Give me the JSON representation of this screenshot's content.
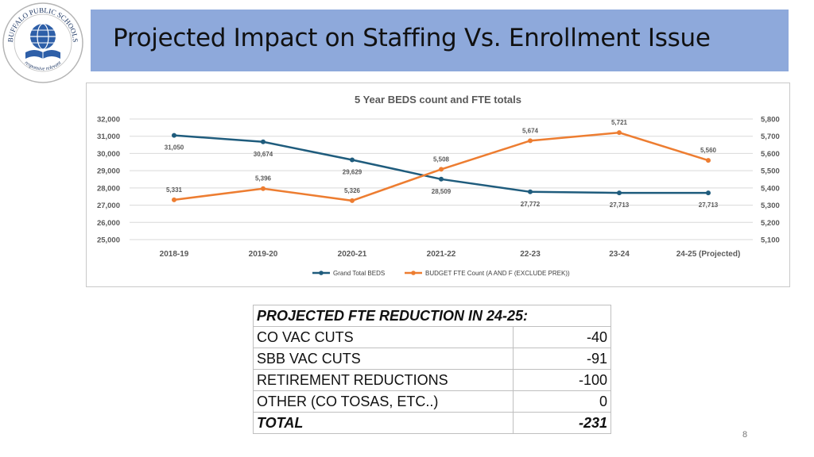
{
  "header": {
    "title": "Projected Impact on Staffing Vs. Enrollment Issue",
    "logo_text": "BUFFALO PUBLIC SCHOOLS",
    "logo_motto": "responsive relevant"
  },
  "chart_data": {
    "type": "line",
    "title": "5 Year BEDS count and FTE totals",
    "categories": [
      "2018-19",
      "2019-20",
      "2020-21",
      "2021-22",
      "22-23",
      "23-24",
      "24-25 (Projected)"
    ],
    "series": [
      {
        "name": "Grand Total BEDS",
        "axis": "left",
        "color": "#1f5c7d",
        "values": [
          31050,
          30674,
          29629,
          28509,
          27772,
          27713,
          27713
        ],
        "labels": [
          "31,050",
          "30,674",
          "29,629",
          "28,509",
          "27,772",
          "27,713",
          "27,713"
        ]
      },
      {
        "name": "BUDGET FTE Count (A AND F (EXCLUDE PREK))",
        "axis": "right",
        "color": "#ed7d31",
        "values": [
          5331,
          5396,
          5326,
          5508,
          5674,
          5721,
          5560
        ],
        "labels": [
          "5,331",
          "5,396",
          "5,326",
          "5,508",
          "5,674",
          "5,721",
          "5,560"
        ]
      }
    ],
    "ylim_left": [
      25000,
      32000
    ],
    "yticks_left": [
      "32,000",
      "31,000",
      "30,000",
      "29,000",
      "28,000",
      "27,000",
      "26,000",
      "25,000"
    ],
    "ylim_right": [
      5100,
      5800
    ],
    "yticks_right": [
      "5,800",
      "5,700",
      "5,600",
      "5,500",
      "5,400",
      "5,300",
      "5,200",
      "5,100"
    ],
    "grid": true,
    "legend_position": "bottom"
  },
  "table": {
    "header": "PROJECTED FTE REDUCTION IN 24-25:",
    "rows": [
      {
        "label": "CO VAC CUTS",
        "value": "-40"
      },
      {
        "label": "SBB VAC CUTS",
        "value": "-91"
      },
      {
        "label": "RETIREMENT REDUCTIONS",
        "value": "-100"
      },
      {
        "label": "OTHER (CO TOSAS, ETC..)",
        "value": "0"
      }
    ],
    "total_label": "TOTAL",
    "total_value": "-231"
  },
  "footer": {
    "page_number": "8"
  }
}
